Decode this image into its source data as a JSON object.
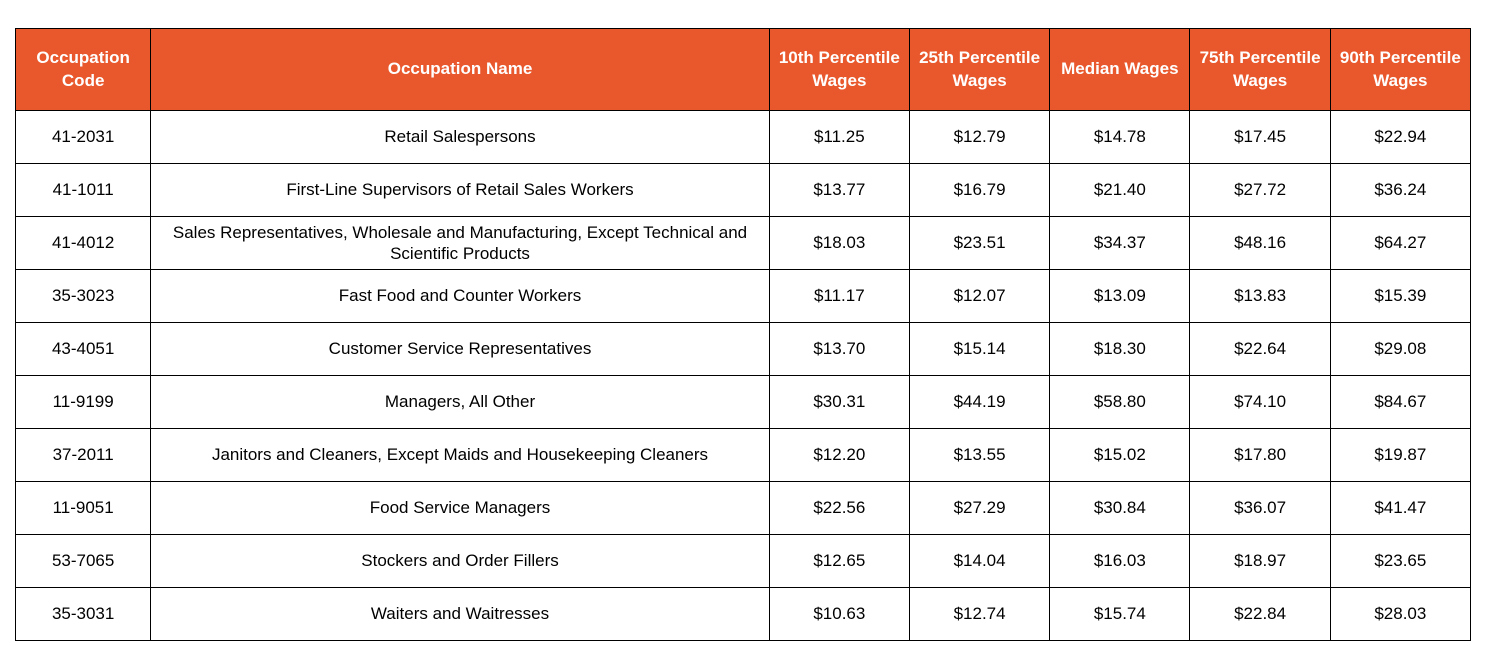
{
  "colors": {
    "header_bg": "#E9582C",
    "header_fg": "#FFFFFF",
    "border": "#000000",
    "body_fg": "#000000",
    "page_bg": "#FFFFFF"
  },
  "chart_data": {
    "type": "table",
    "title": "",
    "columns": [
      "Occupation Code",
      "Occupation Name",
      "10th Percentile Wages",
      "25th Percentile Wages",
      "Median Wages",
      "75th Percentile Wages",
      "90th Percentile Wages"
    ],
    "rows": [
      [
        "41-2031",
        "Retail Salespersons",
        "$11.25",
        "$12.79",
        "$14.78",
        "$17.45",
        "$22.94"
      ],
      [
        "41-1011",
        "First-Line Supervisors of Retail Sales Workers",
        "$13.77",
        "$16.79",
        "$21.40",
        "$27.72",
        "$36.24"
      ],
      [
        "41-4012",
        "Sales Representatives, Wholesale and Manufacturing, Except Technical and Scientific Products",
        "$18.03",
        "$23.51",
        "$34.37",
        "$48.16",
        "$64.27"
      ],
      [
        "35-3023",
        "Fast Food and Counter Workers",
        "$11.17",
        "$12.07",
        "$13.09",
        "$13.83",
        "$15.39"
      ],
      [
        "43-4051",
        "Customer Service Representatives",
        "$13.70",
        "$15.14",
        "$18.30",
        "$22.64",
        "$29.08"
      ],
      [
        "11-9199",
        "Managers, All Other",
        "$30.31",
        "$44.19",
        "$58.80",
        "$74.10",
        "$84.67"
      ],
      [
        "37-2011",
        "Janitors and Cleaners, Except Maids and Housekeeping Cleaners",
        "$12.20",
        "$13.55",
        "$15.02",
        "$17.80",
        "$19.87"
      ],
      [
        "11-9051",
        "Food Service Managers",
        "$22.56",
        "$27.29",
        "$30.84",
        "$36.07",
        "$41.47"
      ],
      [
        "53-7065",
        "Stockers and Order Fillers",
        "$12.65",
        "$14.04",
        "$16.03",
        "$18.97",
        "$23.65"
      ],
      [
        "35-3031",
        "Waiters and Waitresses",
        "$10.63",
        "$12.74",
        "$15.74",
        "$22.84",
        "$28.03"
      ]
    ]
  }
}
